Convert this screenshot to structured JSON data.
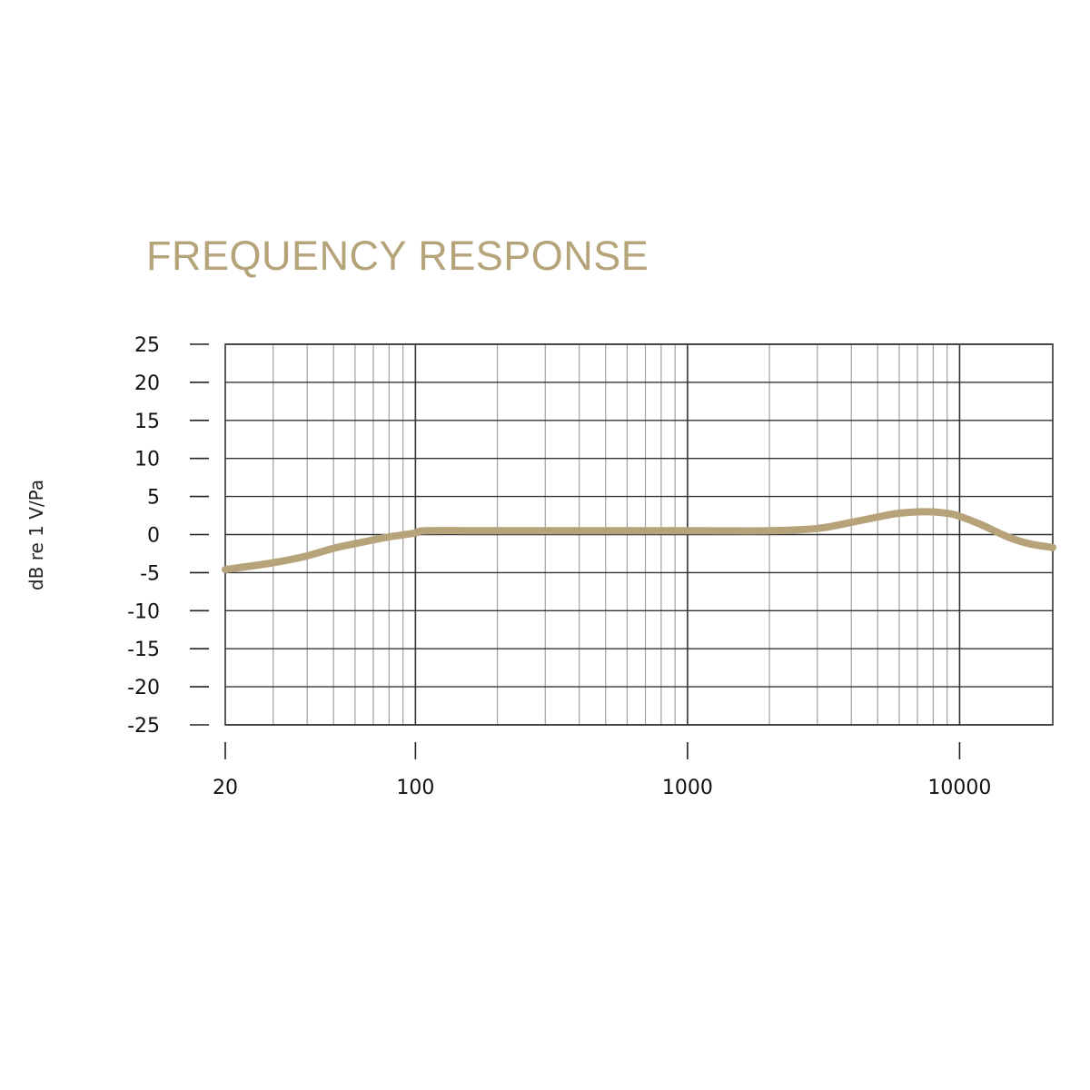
{
  "chart_data": {
    "type": "line",
    "title": "FREQUENCY RESPONSE",
    "xlabel": "",
    "ylabel": "dB re 1 V/Pa",
    "xscale": "log",
    "xlim": [
      20,
      22000
    ],
    "ylim": [
      -25,
      25
    ],
    "grid": true,
    "x_ticks": [
      20,
      100,
      1000,
      10000
    ],
    "x_tick_labels": [
      "20",
      "100",
      "1000",
      "10000"
    ],
    "y_ticks": [
      25,
      20,
      15,
      10,
      5,
      0,
      -5,
      -10,
      -15,
      -20,
      -25
    ],
    "y_tick_labels": [
      "25",
      "20",
      "15",
      "10",
      "5",
      "0",
      "-5",
      "-10",
      "-15",
      "-20",
      "-25"
    ],
    "colors": {
      "title": "#b5a47a",
      "curve": "#b6a37a",
      "grid_major": "#333333",
      "grid_minor": "#a0a0a0"
    },
    "series": [
      {
        "x": [
          20,
          30,
          40,
          50,
          60,
          70,
          80,
          100,
          110,
          200,
          1000,
          2000,
          3000,
          4000,
          5000,
          6000,
          7500,
          9000,
          10000,
          12000,
          15000,
          18000,
          22000
        ],
        "y": [
          -4.6,
          -3.7,
          -2.8,
          -1.8,
          -1.2,
          -0.7,
          -0.3,
          0.2,
          0.5,
          0.5,
          0.5,
          0.5,
          0.8,
          1.6,
          2.3,
          2.8,
          3.0,
          2.8,
          2.4,
          1.3,
          -0.3,
          -1.2,
          -1.7
        ]
      }
    ]
  }
}
